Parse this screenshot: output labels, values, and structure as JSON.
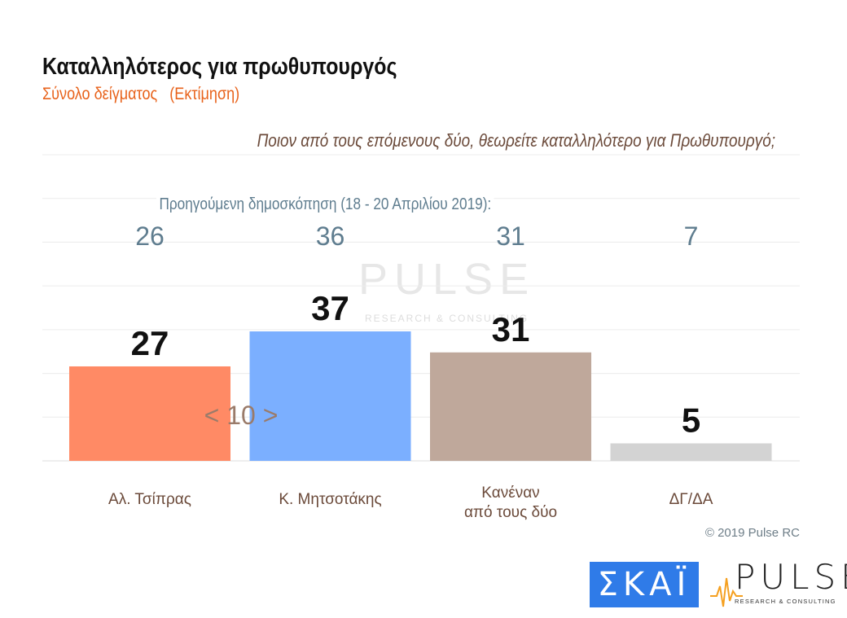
{
  "chart_data": {
    "type": "bar",
    "title": "Καταλληλότερος για πρωθυπουργός",
    "subtitle": "Σύνολο δείγματος   (Εκτίμηση)",
    "question": "Ποιον από τους επόμενους δύο, θεωρείτε καταλληλότερο για Πρωθυπουργό;",
    "categories": [
      "Αλ. Τσίπρας",
      "Κ. Μητσοτάκης",
      "Κανέναν\nαπό τους δύο",
      "ΔΓ/ΔΑ"
    ],
    "values": [
      27,
      37,
      31,
      5
    ],
    "colors": [
      "#FF8A65",
      "#7BAFFF",
      "#BFA89B",
      "#D3D3D3"
    ],
    "previous_label": "Προηγούμενη δημοσκόπηση (18 - 20 Απριλίου 2019):",
    "previous_values": [
      26,
      36,
      31,
      7
    ],
    "gap_annotation": "< 10 >",
    "ylim": [
      0,
      87.5
    ],
    "grid": true
  },
  "footer": {
    "copyright": "© 2019 Pulse RC",
    "logo_skai": "ΣΚΑΪ",
    "logo_pulse": "PULSE",
    "logo_pulse_sub": "RESEARCH & CONSULTING",
    "watermark": "PULSE",
    "watermark_sub": "RESEARCH & CONSULTING"
  }
}
